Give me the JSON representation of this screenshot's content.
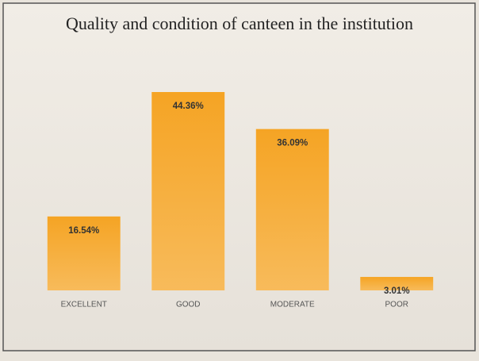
{
  "chart_data": {
    "type": "bar",
    "title": "Quality and condition of canteen  in the institution",
    "categories": [
      "EXCELLENT",
      "GOOD",
      "MODERATE",
      "POOR"
    ],
    "values": [
      16.54,
      44.36,
      36.09,
      3.01
    ],
    "value_labels": [
      "16.54%",
      "44.36%",
      "36.09%",
      "3.01%"
    ],
    "color": "#f5a424"
  }
}
